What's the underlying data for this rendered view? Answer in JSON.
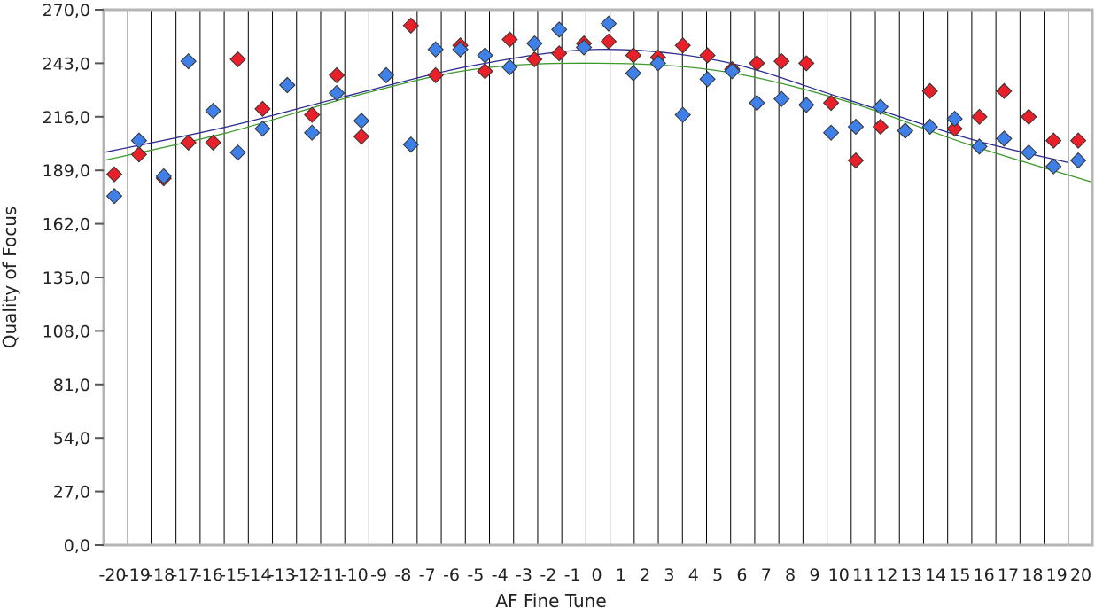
{
  "chart_data": {
    "type": "scatter",
    "xlabel": "AF Fine Tune",
    "ylabel": "Quality of Focus",
    "x_categories": [
      "-20",
      "-19",
      "-18",
      "-17",
      "-16",
      "-15",
      "-14",
      "-13",
      "-12",
      "-11",
      "-10",
      "-9",
      "-8",
      "-7",
      "-6",
      "-5",
      "-4",
      "-3",
      "-2",
      "-1",
      "0",
      "1",
      "2",
      "3",
      "4",
      "5",
      "6",
      "7",
      "8",
      "9",
      "10",
      "11",
      "12",
      "13",
      "14",
      "15",
      "16",
      "17",
      "18",
      "19",
      "20"
    ],
    "ylim": [
      0,
      270
    ],
    "y_ticks": [
      "0,0",
      "27,0",
      "54,0",
      "81,0",
      "108,0",
      "135,0",
      "162,0",
      "189,0",
      "216,0",
      "243,0",
      "270,0"
    ],
    "grid": {
      "vertical": true,
      "horizontal": false
    },
    "series": [
      {
        "color": "#e8202a",
        "marker": "diamond",
        "x": [
          -20,
          -19,
          -18,
          -17,
          -16,
          -15,
          -14,
          -13,
          -12,
          -11,
          -10,
          -9,
          -8,
          -7,
          -6,
          -5,
          -4,
          -3,
          -2,
          -1,
          0,
          1,
          2,
          3,
          4,
          5,
          6,
          7,
          8,
          9,
          10,
          11,
          12,
          13,
          14,
          15,
          16,
          17,
          18,
          19,
          20
        ],
        "y": [
          187,
          197,
          185,
          203,
          203,
          245,
          220,
          232,
          217,
          237,
          206,
          237,
          262,
          237,
          252,
          239,
          255,
          245,
          248,
          253,
          254,
          247,
          246,
          252,
          247,
          240,
          243,
          244,
          243,
          223,
          194,
          211,
          209,
          229,
          210,
          216,
          229,
          216,
          204,
          204,
          181
        ]
      },
      {
        "color": "#3f7fe8",
        "marker": "diamond",
        "x": [
          -20,
          -19,
          -18,
          -17,
          -16,
          -15,
          -14,
          -13,
          -12,
          -11,
          -10,
          -9,
          -8,
          -7,
          -6,
          -5,
          -4,
          -3,
          -2,
          -1,
          0,
          1,
          2,
          3,
          4,
          5,
          6,
          7,
          8,
          9,
          10,
          11,
          12,
          13,
          14,
          15,
          16,
          17,
          18,
          19,
          20
        ],
        "y": [
          176,
          204,
          186,
          244,
          219,
          198,
          210,
          232,
          208,
          228,
          214,
          237,
          202,
          250,
          250,
          247,
          241,
          253,
          260,
          251,
          263,
          238,
          243,
          217,
          235,
          239,
          223,
          225,
          222,
          208,
          211,
          221,
          209,
          211,
          215,
          201,
          205,
          198,
          191,
          194,
          170
        ]
      }
    ],
    "trendlines": [
      {
        "color": "#2b2b8f",
        "x": [
          -20,
          -15,
          -10,
          -5,
          0,
          5,
          10,
          15,
          19
        ],
        "y": [
          198,
          211,
          227,
          242,
          250,
          244,
          225,
          205,
          193
        ]
      },
      {
        "color": "#3a9a2a",
        "x": [
          -20,
          -15,
          -10,
          -5,
          0,
          5,
          10,
          15,
          20
        ],
        "y": [
          194,
          208,
          226,
          240,
          243,
          239,
          224,
          202,
          183
        ]
      }
    ]
  }
}
